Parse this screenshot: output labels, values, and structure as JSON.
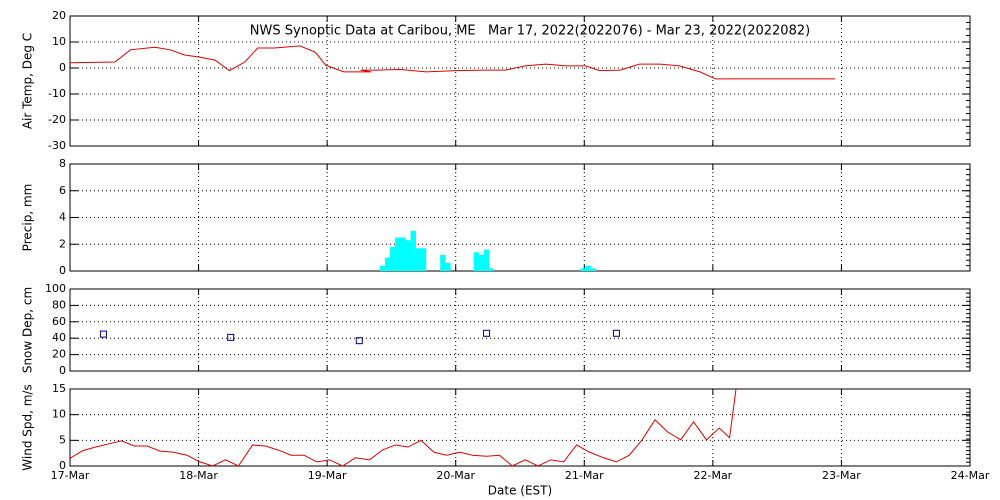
{
  "chart_data": [
    {
      "type": "line",
      "title": "NWS Synoptic Data at Caribou, ME   Mar 17, 2022(2022076) - Mar 23, 2022(2022082)",
      "ylabel": "Air Temp, Deg C",
      "ylim": [
        -30,
        20
      ],
      "yticks": [
        -30,
        -20,
        -10,
        0,
        10,
        20
      ],
      "grid": true,
      "series": [
        {
          "color": "#dd0000",
          "x": [
            0,
            0.35,
            0.47,
            0.66,
            0.78,
            0.89,
            1.01,
            1.13,
            1.24,
            1.36,
            1.46,
            1.59,
            1.79,
            1.91,
            1.99,
            2.13,
            2.29,
            2.34,
            2.26,
            2.41,
            2.57,
            2.77,
            3.0,
            3.23,
            3.39,
            3.54,
            3.7,
            3.86,
            4.01,
            4.12,
            4.28,
            4.43,
            4.59,
            4.74,
            4.9,
            5.02,
            5.37,
            5.95
          ],
          "values": [
            2,
            2.3,
            7,
            8,
            7,
            5,
            4.2,
            3,
            -1,
            2.3,
            7.7,
            7.7,
            8.5,
            6,
            1,
            -1.5,
            -1.5,
            -1.5,
            -0.8,
            -0.8,
            -0.6,
            -1.5,
            -1,
            -0.8,
            -0.8,
            0.8,
            1.5,
            0.8,
            0.8,
            -1,
            -0.8,
            1.5,
            1.5,
            0.8,
            -1.5,
            -4.2,
            -4.2,
            -4.2
          ]
        }
      ]
    },
    {
      "type": "bar",
      "ylabel": "Precip, mm",
      "ylim": [
        0,
        8
      ],
      "yticks": [
        0,
        2,
        4,
        6,
        8
      ],
      "grid": true,
      "color": "#00ffff",
      "x": [
        2.43,
        2.47,
        2.51,
        2.55,
        2.59,
        2.63,
        2.67,
        2.71,
        2.75,
        2.9,
        2.94,
        3.16,
        3.2,
        3.24,
        3.27,
        3.99,
        4.03,
        4.07
      ],
      "values": [
        0.4,
        1,
        1.8,
        2.5,
        2.5,
        2.3,
        3,
        1.7,
        1.7,
        1.2,
        0.6,
        1.4,
        1.2,
        1.6,
        0.2,
        0.2,
        0.4,
        0.2
      ]
    },
    {
      "type": "scatter",
      "ylabel": "Snow Dep, cm",
      "ylim": [
        0,
        100
      ],
      "yticks": [
        0,
        20,
        40,
        60,
        80,
        100
      ],
      "grid": true,
      "color": "#000080",
      "x": [
        0.26,
        1.25,
        2.25,
        3.24,
        4.25
      ],
      "values": [
        45,
        41,
        37,
        46,
        46
      ]
    },
    {
      "type": "line",
      "ylabel": "Wind Spd, m/s",
      "xlabel": "Date (EST)",
      "ylim": [
        0,
        15
      ],
      "yticks": [
        0,
        5,
        10,
        15
      ],
      "grid": true,
      "xlim": [
        0,
        7
      ],
      "xticks": [
        {
          "value": 0,
          "label": "17-Mar"
        },
        {
          "value": 1,
          "label": "18-Mar"
        },
        {
          "value": 2,
          "label": "19-Mar"
        },
        {
          "value": 3,
          "label": "20-Mar"
        },
        {
          "value": 4,
          "label": "21-Mar"
        },
        {
          "value": 5,
          "label": "22-Mar"
        },
        {
          "value": 6,
          "label": "23-Mar"
        },
        {
          "value": 7,
          "label": "24-Mar"
        }
      ],
      "series": [
        {
          "color": "#dd0000",
          "x": [
            0,
            0.1,
            0.2,
            0.3,
            0.4,
            0.5,
            0.6,
            0.7,
            0.8,
            0.91,
            1.01,
            1.11,
            1.21,
            1.31,
            1.42,
            1.52,
            1.62,
            1.72,
            1.82,
            1.92,
            2.02,
            2.12,
            2.22,
            2.33,
            2.43,
            2.53,
            2.63,
            2.73,
            2.83,
            2.93,
            3.03,
            3.13,
            3.24,
            3.34,
            3.44,
            3.54,
            3.64,
            3.74,
            3.84,
            3.94,
            4.04,
            4.15,
            4.25,
            4.35,
            4.45,
            4.55,
            4.65,
            4.75,
            4.85,
            4.95,
            5.05,
            5.13,
            5.18
          ],
          "values": [
            1.5,
            3,
            3.7,
            4.3,
            4.9,
            3.9,
            3.9,
            2.9,
            2.7,
            2.1,
            0.8,
            0,
            1.2,
            0,
            4.1,
            3.9,
            3.1,
            2.1,
            2.1,
            0.8,
            1.2,
            0,
            1.6,
            1.2,
            3.1,
            4.1,
            3.7,
            5,
            2.7,
            2.1,
            2.7,
            2.1,
            1.9,
            2.1,
            0,
            1.2,
            0,
            1.2,
            0.8,
            4.1,
            2.7,
            1.6,
            0.8,
            2.1,
            5.1,
            9,
            6.6,
            5.1,
            8.6,
            5.1,
            7.4,
            5.5,
            15
          ]
        }
      ]
    }
  ]
}
